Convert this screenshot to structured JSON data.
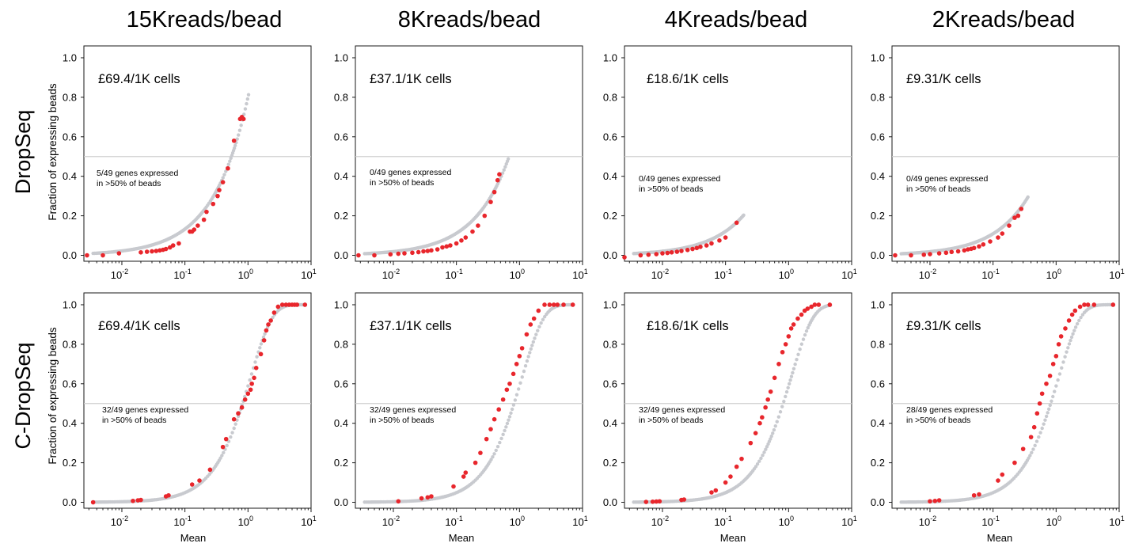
{
  "colors": {
    "highlight": "#e8262c",
    "background_genes": "#c8cacf",
    "threshold_line": "#cfcfcf",
    "frame": "#1a1a1a"
  },
  "column_titles": [
    "15Kreads/bead",
    "8Kreads/bead",
    "4Kreads/bead",
    "2Kreads/bead"
  ],
  "row_titles": [
    "DropSeq",
    "C-DropSeq"
  ],
  "shared": {
    "ylabel": "Fraction of expressing beads",
    "xlabel": "Mean",
    "x_scale": "log",
    "xlim": [
      0.0025,
      10
    ],
    "ylim": [
      -0.03,
      1.06
    ],
    "yticks": [
      "0.0",
      "0.2",
      "0.4",
      "0.6",
      "0.8",
      "1.0"
    ],
    "xtick_bases": [
      "10",
      "10",
      "10",
      "10"
    ],
    "xtick_exps": [
      "-2",
      "-1",
      "0",
      "1"
    ],
    "threshold": 0.5,
    "grid": false,
    "legend": "none"
  },
  "chart_data": [
    {
      "type": "scatter",
      "row": 0,
      "col": 0,
      "cost": "£69.4/1K cells",
      "note1": "5/49 genes expressed",
      "note2": "in >50% of beads",
      "highlighted_genes": {
        "x": [
          0.0028,
          0.005,
          0.009,
          0.02,
          0.025,
          0.03,
          0.035,
          0.04,
          0.045,
          0.05,
          0.058,
          0.065,
          0.08,
          0.12,
          0.13,
          0.14,
          0.16,
          0.2,
          0.22,
          0.28,
          0.33,
          0.35,
          0.4,
          0.48,
          0.6,
          0.75,
          0.8,
          0.85
        ],
        "y": [
          0.0,
          0.0,
          0.01,
          0.015,
          0.018,
          0.02,
          0.022,
          0.025,
          0.028,
          0.032,
          0.04,
          0.05,
          0.06,
          0.12,
          0.12,
          0.13,
          0.15,
          0.18,
          0.22,
          0.26,
          0.3,
          0.33,
          0.37,
          0.44,
          0.58,
          0.69,
          0.7,
          0.69
        ]
      },
      "background_curve": {
        "x_max": 1.0,
        "y_max": 0.8
      }
    },
    {
      "type": "scatter",
      "row": 0,
      "col": 1,
      "cost": "£37.1/1K cells",
      "note1": "0/49 genes expressed",
      "note2": "in >50% of beads",
      "highlighted_genes": {
        "x": [
          0.0028,
          0.005,
          0.009,
          0.012,
          0.015,
          0.02,
          0.025,
          0.03,
          0.035,
          0.04,
          0.05,
          0.06,
          0.07,
          0.08,
          0.1,
          0.12,
          0.14,
          0.18,
          0.22,
          0.28,
          0.35,
          0.4,
          0.45,
          0.48
        ],
        "y": [
          0.0,
          0.0,
          0.005,
          0.008,
          0.01,
          0.013,
          0.016,
          0.02,
          0.022,
          0.025,
          0.03,
          0.04,
          0.045,
          0.05,
          0.06,
          0.075,
          0.09,
          0.12,
          0.15,
          0.2,
          0.27,
          0.32,
          0.38,
          0.41
        ]
      },
      "background_curve": {
        "x_max": 0.65,
        "y_max": 0.48
      }
    },
    {
      "type": "scatter",
      "row": 0,
      "col": 2,
      "cost": "£18.6/1K cells",
      "note1": "0/49 genes expressed",
      "note2": "in >50% of beads",
      "highlighted_genes": {
        "x": [
          0.0025,
          0.0045,
          0.006,
          0.008,
          0.01,
          0.012,
          0.014,
          0.017,
          0.02,
          0.025,
          0.03,
          0.035,
          0.04,
          0.05,
          0.06,
          0.08,
          0.1,
          0.15
        ],
        "y": [
          -0.01,
          0.0,
          0.003,
          0.006,
          0.01,
          0.012,
          0.015,
          0.018,
          0.022,
          0.027,
          0.032,
          0.037,
          0.043,
          0.05,
          0.06,
          0.075,
          0.09,
          0.165
        ]
      },
      "background_curve": {
        "x_max": 0.19,
        "y_max": 0.2
      }
    },
    {
      "type": "scatter",
      "row": 0,
      "col": 3,
      "cost": "£9.31/K cells",
      "note1": "0/49 genes expressed",
      "note2": "in >50% of beads",
      "highlighted_genes": {
        "x": [
          0.0028,
          0.005,
          0.008,
          0.01,
          0.014,
          0.018,
          0.022,
          0.028,
          0.035,
          0.04,
          0.045,
          0.05,
          0.06,
          0.07,
          0.09,
          0.12,
          0.14,
          0.18,
          0.22,
          0.25,
          0.28
        ],
        "y": [
          0.0,
          0.0,
          0.003,
          0.006,
          0.01,
          0.013,
          0.017,
          0.02,
          0.025,
          0.03,
          0.033,
          0.037,
          0.045,
          0.055,
          0.07,
          0.09,
          0.11,
          0.15,
          0.19,
          0.2,
          0.235
        ]
      },
      "background_curve": {
        "x_max": 0.35,
        "y_max": 0.29
      }
    },
    {
      "type": "scatter",
      "row": 1,
      "col": 0,
      "cost": "£69.4/1K cells",
      "note1": "32/49 genes expressed",
      "note2": "in >50% of beads",
      "highlighted_genes": {
        "x": [
          0.0035,
          0.015,
          0.018,
          0.02,
          0.05,
          0.055,
          0.13,
          0.17,
          0.25,
          0.4,
          0.45,
          0.6,
          0.7,
          0.8,
          0.9,
          1.0,
          1.1,
          1.15,
          1.25,
          1.35,
          1.6,
          1.8,
          1.95,
          2.1,
          2.3,
          2.6,
          3.0,
          3.5,
          4.0,
          4.5,
          5.0,
          5.5,
          6.0,
          8.0
        ],
        "y": [
          0.0,
          0.007,
          0.01,
          0.012,
          0.03,
          0.035,
          0.09,
          0.11,
          0.165,
          0.28,
          0.32,
          0.42,
          0.45,
          0.48,
          0.52,
          0.55,
          0.57,
          0.6,
          0.63,
          0.68,
          0.75,
          0.82,
          0.87,
          0.9,
          0.92,
          0.96,
          0.99,
          1.0,
          1.0,
          1.0,
          1.0,
          1.0,
          1.0,
          1.0
        ]
      },
      "background_curve": {
        "x_max": 8.0,
        "y_max": 1.0
      }
    },
    {
      "type": "scatter",
      "row": 1,
      "col": 1,
      "cost": "£37.1/1K cells",
      "note1": "32/49 genes expressed",
      "note2": "in >50% of beads",
      "highlighted_genes": {
        "x": [
          0.012,
          0.028,
          0.035,
          0.04,
          0.09,
          0.13,
          0.14,
          0.2,
          0.24,
          0.3,
          0.35,
          0.4,
          0.47,
          0.55,
          0.63,
          0.7,
          0.8,
          0.9,
          1.0,
          1.1,
          1.3,
          1.5,
          1.7,
          2.0,
          2.5,
          3.0,
          3.5,
          4.0,
          5.0,
          7.0
        ],
        "y": [
          0.005,
          0.02,
          0.025,
          0.03,
          0.08,
          0.13,
          0.15,
          0.2,
          0.25,
          0.32,
          0.37,
          0.42,
          0.47,
          0.52,
          0.57,
          0.6,
          0.65,
          0.7,
          0.74,
          0.78,
          0.85,
          0.9,
          0.93,
          0.97,
          1.0,
          1.0,
          1.0,
          1.0,
          1.0,
          1.0
        ]
      },
      "background_curve": {
        "x_max": 7.0,
        "y_max": 1.0
      }
    },
    {
      "type": "scatter",
      "row": 1,
      "col": 2,
      "cost": "£18.6/1K cells",
      "note1": "32/49 genes expressed",
      "note2": "in >50% of beads",
      "highlighted_genes": {
        "x": [
          0.0055,
          0.007,
          0.008,
          0.009,
          0.02,
          0.022,
          0.06,
          0.07,
          0.1,
          0.12,
          0.15,
          0.18,
          0.25,
          0.3,
          0.35,
          0.38,
          0.43,
          0.47,
          0.52,
          0.6,
          0.7,
          0.8,
          0.9,
          1.0,
          1.1,
          1.2,
          1.4,
          1.6,
          1.8,
          2.0,
          2.3,
          2.6,
          3.0,
          4.5
        ],
        "y": [
          0.002,
          0.003,
          0.004,
          0.005,
          0.012,
          0.014,
          0.05,
          0.06,
          0.1,
          0.13,
          0.18,
          0.22,
          0.3,
          0.35,
          0.4,
          0.43,
          0.48,
          0.52,
          0.56,
          0.63,
          0.7,
          0.76,
          0.8,
          0.84,
          0.88,
          0.9,
          0.93,
          0.95,
          0.97,
          0.98,
          0.99,
          1.0,
          1.0,
          1.0
        ]
      },
      "background_curve": {
        "x_max": 4.5,
        "y_max": 1.0
      }
    },
    {
      "type": "scatter",
      "row": 1,
      "col": 3,
      "cost": "£9.31/K cells",
      "note1": "28/49 genes expressed",
      "note2": "in >50% of beads",
      "highlighted_genes": {
        "x": [
          0.01,
          0.012,
          0.014,
          0.05,
          0.06,
          0.12,
          0.14,
          0.22,
          0.3,
          0.4,
          0.45,
          0.5,
          0.55,
          0.6,
          0.7,
          0.8,
          0.9,
          1.0,
          1.1,
          1.2,
          1.4,
          1.6,
          1.8,
          2.0,
          2.4,
          2.8,
          3.2,
          4.0,
          8.0
        ],
        "y": [
          0.005,
          0.007,
          0.01,
          0.035,
          0.04,
          0.11,
          0.14,
          0.2,
          0.27,
          0.33,
          0.38,
          0.45,
          0.5,
          0.55,
          0.6,
          0.64,
          0.7,
          0.74,
          0.8,
          0.84,
          0.88,
          0.92,
          0.95,
          0.97,
          0.99,
          1.0,
          1.0,
          1.0,
          1.0
        ]
      },
      "background_curve": {
        "x_max": 8.0,
        "y_max": 1.0
      }
    }
  ]
}
